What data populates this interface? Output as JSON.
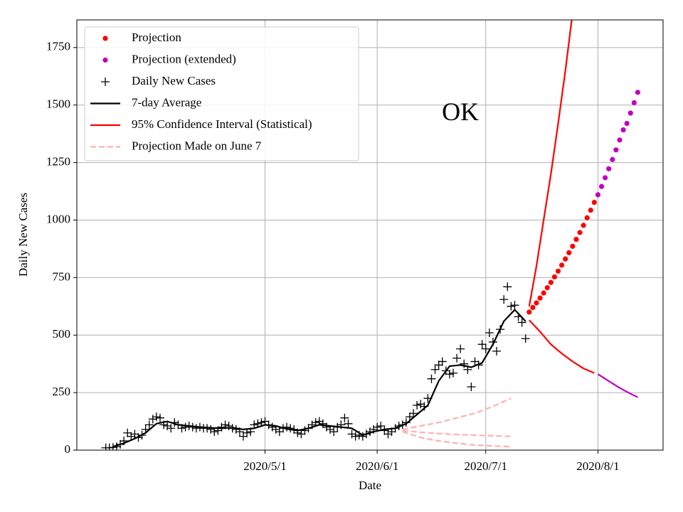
{
  "chart_data": {
    "type": "line",
    "title": "OK",
    "title_x": "2020-06-24",
    "title_y": 1460,
    "x_label": "Date",
    "y_label": "Daily New Cases",
    "xlim": [
      "2020-03-10",
      "2020-08-19"
    ],
    "ylim": [
      0,
      1870
    ],
    "xticks": [
      {
        "value": "2020-05-01",
        "label": "2020/5/1"
      },
      {
        "value": "2020-06-01",
        "label": "2020/6/1"
      },
      {
        "value": "2020-07-01",
        "label": "2020/7/1"
      },
      {
        "value": "2020-08-01",
        "label": "2020/8/1"
      }
    ],
    "yticks": [
      0,
      250,
      500,
      750,
      1000,
      1250,
      1500,
      1750
    ],
    "grid": true,
    "legend": "upper left",
    "series": [
      {
        "name": "Projection",
        "style": "dots",
        "color": "#ff0000",
        "x": [
          "2020-07-13",
          "2020-07-14",
          "2020-07-15",
          "2020-07-16",
          "2020-07-17",
          "2020-07-18",
          "2020-07-19",
          "2020-07-20",
          "2020-07-21",
          "2020-07-22",
          "2020-07-23",
          "2020-07-24",
          "2020-07-25",
          "2020-07-26",
          "2020-07-27",
          "2020-07-28",
          "2020-07-29",
          "2020-07-30",
          "2020-07-31"
        ],
        "values": [
          600,
          620,
          640,
          661,
          683,
          706,
          729,
          753,
          778,
          804,
          831,
          858,
          886,
          916,
          946,
          977,
          1010,
          1043,
          1077
        ]
      },
      {
        "name": "Projection (extended)",
        "style": "dots",
        "color": "#bf00bf",
        "x": [
          "2020-08-01",
          "2020-08-02",
          "2020-08-03",
          "2020-08-04",
          "2020-08-05",
          "2020-08-06",
          "2020-08-07",
          "2020-08-08",
          "2020-08-09",
          "2020-08-10",
          "2020-08-11",
          "2020-08-12"
        ],
        "values": [
          1110,
          1146,
          1184,
          1223,
          1263,
          1305,
          1348,
          1392,
          1420,
          1465,
          1510,
          1555
        ]
      },
      {
        "name": "Daily New Cases",
        "style": "plus",
        "color": "#000000",
        "x": [
          "2020-03-18",
          "2020-03-19",
          "2020-03-20",
          "2020-03-21",
          "2020-03-22",
          "2020-03-23",
          "2020-03-24",
          "2020-03-25",
          "2020-03-26",
          "2020-03-27",
          "2020-03-28",
          "2020-03-29",
          "2020-03-30",
          "2020-03-31",
          "2020-04-01",
          "2020-04-02",
          "2020-04-03",
          "2020-04-04",
          "2020-04-05",
          "2020-04-06",
          "2020-04-07",
          "2020-04-08",
          "2020-04-09",
          "2020-04-10",
          "2020-04-11",
          "2020-04-12",
          "2020-04-13",
          "2020-04-14",
          "2020-04-15",
          "2020-04-16",
          "2020-04-17",
          "2020-04-18",
          "2020-04-19",
          "2020-04-20",
          "2020-04-21",
          "2020-04-22",
          "2020-04-23",
          "2020-04-24",
          "2020-04-25",
          "2020-04-26",
          "2020-04-27",
          "2020-04-28",
          "2020-04-29",
          "2020-04-30",
          "2020-05-01",
          "2020-05-02",
          "2020-05-03",
          "2020-05-04",
          "2020-05-05",
          "2020-05-06",
          "2020-05-07",
          "2020-05-08",
          "2020-05-09",
          "2020-05-10",
          "2020-05-11",
          "2020-05-12",
          "2020-05-13",
          "2020-05-14",
          "2020-05-15",
          "2020-05-16",
          "2020-05-17",
          "2020-05-18",
          "2020-05-19",
          "2020-05-20",
          "2020-05-21",
          "2020-05-22",
          "2020-05-23",
          "2020-05-24",
          "2020-05-25",
          "2020-05-26",
          "2020-05-27",
          "2020-05-28",
          "2020-05-29",
          "2020-05-30",
          "2020-05-31",
          "2020-06-01",
          "2020-06-02",
          "2020-06-03",
          "2020-06-04",
          "2020-06-05",
          "2020-06-06",
          "2020-06-07",
          "2020-06-08",
          "2020-06-09",
          "2020-06-10",
          "2020-06-11",
          "2020-06-12",
          "2020-06-13",
          "2020-06-14",
          "2020-06-15",
          "2020-06-16",
          "2020-06-17",
          "2020-06-18",
          "2020-06-19",
          "2020-06-20",
          "2020-06-21",
          "2020-06-22",
          "2020-06-23",
          "2020-06-24",
          "2020-06-25",
          "2020-06-26",
          "2020-06-27",
          "2020-06-28",
          "2020-06-29",
          "2020-06-30",
          "2020-07-01",
          "2020-07-02",
          "2020-07-03",
          "2020-07-04",
          "2020-07-05",
          "2020-07-06",
          "2020-07-07",
          "2020-07-08",
          "2020-07-09",
          "2020-07-10",
          "2020-07-11",
          "2020-07-12"
        ],
        "values": [
          10,
          10,
          12,
          15,
          25,
          40,
          75,
          60,
          70,
          55,
          65,
          90,
          110,
          135,
          145,
          140,
          110,
          105,
          95,
          120,
          110,
          95,
          100,
          105,
          100,
          95,
          100,
          95,
          95,
          90,
          80,
          85,
          100,
          110,
          105,
          95,
          90,
          80,
          60,
          75,
          80,
          110,
          115,
          120,
          125,
          110,
          100,
          90,
          80,
          95,
          100,
          95,
          90,
          75,
          70,
          85,
          95,
          110,
          120,
          125,
          115,
          100,
          90,
          80,
          100,
          110,
          140,
          115,
          70,
          60,
          65,
          60,
          70,
          80,
          90,
          100,
          105,
          85,
          70,
          80,
          95,
          105,
          110,
          120,
          145,
          160,
          195,
          200,
          190,
          225,
          310,
          350,
          370,
          385,
          345,
          330,
          335,
          400,
          440,
          375,
          350,
          275,
          385,
          370,
          460,
          440,
          510,
          470,
          430,
          525,
          655,
          710,
          625,
          630,
          580,
          555,
          485
        ]
      },
      {
        "name": "7-day Average",
        "style": "line",
        "color": "#000000",
        "x": [
          "2020-03-20",
          "2020-03-23",
          "2020-03-26",
          "2020-03-29",
          "2020-04-01",
          "2020-04-04",
          "2020-04-07",
          "2020-04-10",
          "2020-04-13",
          "2020-04-16",
          "2020-04-19",
          "2020-04-22",
          "2020-04-25",
          "2020-04-28",
          "2020-05-01",
          "2020-05-04",
          "2020-05-07",
          "2020-05-10",
          "2020-05-13",
          "2020-05-16",
          "2020-05-19",
          "2020-05-22",
          "2020-05-25",
          "2020-05-28",
          "2020-05-31",
          "2020-06-03",
          "2020-06-06",
          "2020-06-09",
          "2020-06-12",
          "2020-06-15",
          "2020-06-18",
          "2020-06-21",
          "2020-06-24",
          "2020-06-27",
          "2020-06-30",
          "2020-07-03",
          "2020-07-06",
          "2020-07-09",
          "2020-07-12"
        ],
        "values": [
          15,
          30,
          50,
          75,
          115,
          125,
          110,
          105,
          100,
          97,
          95,
          98,
          90,
          95,
          110,
          105,
          92,
          85,
          95,
          110,
          105,
          100,
          95,
          65,
          80,
          90,
          95,
          115,
          155,
          195,
          300,
          365,
          370,
          360,
          380,
          460,
          560,
          610,
          560
        ]
      },
      {
        "name": "95% Confidence Interval (Statistical)",
        "style": "line",
        "color": "#ff0000",
        "x": [
          "2020-07-13",
          "2020-07-15",
          "2020-07-17",
          "2020-07-19",
          "2020-07-21",
          "2020-07-23",
          "2020-07-25",
          "2020-07-27"
        ],
        "values": [
          625,
          800,
          1000,
          1200,
          1420,
          1650,
          1900,
          2150
        ]
      },
      {
        "style": "line",
        "color": "#ff0000",
        "x": [
          "2020-07-13",
          "2020-07-16",
          "2020-07-19",
          "2020-07-22",
          "2020-07-25",
          "2020-07-28",
          "2020-07-31"
        ],
        "values": [
          565,
          515,
          460,
          420,
          385,
          355,
          335
        ]
      },
      {
        "style": "line",
        "color": "#bf00bf",
        "x": [
          "2020-08-01",
          "2020-08-04",
          "2020-08-07",
          "2020-08-10",
          "2020-08-12"
        ],
        "values": [
          330,
          300,
          270,
          245,
          230
        ]
      },
      {
        "name": "Projection Made on June 7",
        "style": "dashed",
        "color": "#ffb0b0",
        "x": [
          "2020-06-08",
          "2020-06-13",
          "2020-06-18",
          "2020-06-23",
          "2020-06-28",
          "2020-07-03",
          "2020-07-08"
        ],
        "values": [
          90,
          105,
          120,
          140,
          160,
          190,
          225
        ]
      },
      {
        "style": "dashed",
        "color": "#ffb0b0",
        "x": [
          "2020-06-08",
          "2020-06-13",
          "2020-06-18",
          "2020-06-23",
          "2020-06-28",
          "2020-07-03",
          "2020-07-08"
        ],
        "values": [
          85,
          78,
          72,
          68,
          65,
          62,
          60
        ]
      },
      {
        "style": "dashed",
        "color": "#ffb0b0",
        "x": [
          "2020-06-08",
          "2020-06-13",
          "2020-06-18",
          "2020-06-23",
          "2020-06-28",
          "2020-07-03",
          "2020-07-08"
        ],
        "values": [
          80,
          55,
          40,
          30,
          22,
          18,
          15
        ]
      }
    ]
  }
}
